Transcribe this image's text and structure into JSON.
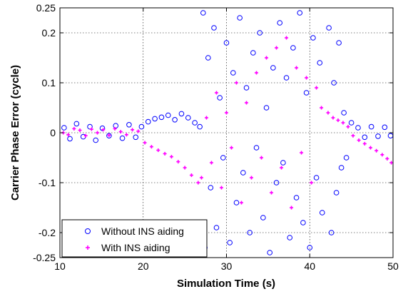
{
  "chart_data": {
    "type": "scatter",
    "title": "",
    "xlabel": "Simulation Time (s)",
    "ylabel": "Carrier Phase Error (cycle)",
    "xlim": [
      10,
      50
    ],
    "ylim": [
      -0.25,
      0.25
    ],
    "xticks": [
      10,
      20,
      30,
      40,
      50
    ],
    "xtick_labels": [
      "10",
      "20",
      "30",
      "40",
      "50"
    ],
    "yticks": [
      -0.25,
      -0.2,
      -0.1,
      0,
      0.1,
      0.2,
      0.25
    ],
    "ytick_labels": [
      "-0.25",
      "-0.2",
      "-0.1",
      "0",
      "0.1",
      "0.2",
      "0.25"
    ],
    "grid": true,
    "legend_position": "bottom-left",
    "series": [
      {
        "name": "Without INS aiding",
        "marker": "circle-open",
        "color": "#0000ff",
        "points": [
          [
            10.5,
            0.01
          ],
          [
            11.2,
            -0.012
          ],
          [
            12.0,
            0.018
          ],
          [
            12.8,
            -0.008
          ],
          [
            13.6,
            0.012
          ],
          [
            14.3,
            -0.015
          ],
          [
            15.1,
            0.009
          ],
          [
            15.9,
            -0.006
          ],
          [
            16.7,
            0.014
          ],
          [
            17.5,
            -0.011
          ],
          [
            18.3,
            0.016
          ],
          [
            19.1,
            -0.009
          ],
          [
            19.8,
            0.012
          ],
          [
            20.6,
            0.022
          ],
          [
            21.4,
            0.028
          ],
          [
            22.2,
            0.031
          ],
          [
            23.0,
            0.035
          ],
          [
            23.8,
            0.026
          ],
          [
            24.6,
            0.038
          ],
          [
            25.4,
            0.03
          ],
          [
            26.2,
            0.02
          ],
          [
            26.8,
            0.012
          ],
          [
            27.2,
            0.24
          ],
          [
            27.4,
            -0.23
          ],
          [
            27.8,
            0.15
          ],
          [
            28.1,
            -0.11
          ],
          [
            28.5,
            0.21
          ],
          [
            28.8,
            -0.19
          ],
          [
            29.2,
            0.07
          ],
          [
            29.6,
            -0.05
          ],
          [
            30.0,
            0.18
          ],
          [
            30.4,
            -0.22
          ],
          [
            30.8,
            0.12
          ],
          [
            31.2,
            -0.14
          ],
          [
            31.6,
            0.23
          ],
          [
            32.0,
            -0.08
          ],
          [
            32.4,
            0.09
          ],
          [
            32.8,
            -0.2
          ],
          [
            33.2,
            0.16
          ],
          [
            33.6,
            -0.03
          ],
          [
            34.0,
            0.2
          ],
          [
            34.4,
            -0.17
          ],
          [
            34.8,
            0.05
          ],
          [
            35.2,
            -0.24
          ],
          [
            35.6,
            0.13
          ],
          [
            36.0,
            -0.1
          ],
          [
            36.4,
            0.22
          ],
          [
            36.8,
            -0.06
          ],
          [
            37.2,
            0.11
          ],
          [
            37.6,
            -0.21
          ],
          [
            38.0,
            0.17
          ],
          [
            38.4,
            -0.13
          ],
          [
            38.8,
            0.24
          ],
          [
            39.2,
            -0.18
          ],
          [
            39.6,
            0.08
          ],
          [
            40.0,
            -0.23
          ],
          [
            40.4,
            0.19
          ],
          [
            40.8,
            -0.09
          ],
          [
            41.2,
            0.14
          ],
          [
            41.5,
            -0.16
          ],
          [
            42.3,
            0.21
          ],
          [
            42.6,
            -0.2
          ],
          [
            42.9,
            0.1
          ],
          [
            43.2,
            -0.12
          ],
          [
            43.5,
            0.18
          ],
          [
            43.8,
            -0.07
          ],
          [
            44.1,
            0.04
          ],
          [
            44.4,
            -0.05
          ],
          [
            45.0,
            0.02
          ],
          [
            45.8,
            0.01
          ],
          [
            46.6,
            -0.009
          ],
          [
            47.4,
            0.012
          ],
          [
            48.2,
            -0.007
          ],
          [
            49.0,
            0.011
          ],
          [
            49.7,
            -0.006
          ]
        ]
      },
      {
        "name": "With INS aiding",
        "marker": "plus",
        "color": "#ff00ff",
        "points": [
          [
            10.4,
            0.0
          ],
          [
            11.0,
            -0.004
          ],
          [
            11.7,
            0.008
          ],
          [
            12.4,
            0.005
          ],
          [
            13.1,
            -0.006
          ],
          [
            13.8,
            0.007
          ],
          [
            14.5,
            0.0
          ],
          [
            15.2,
            0.006
          ],
          [
            15.9,
            -0.005
          ],
          [
            16.6,
            0.008
          ],
          [
            17.3,
            0.002
          ],
          [
            18.0,
            -0.004
          ],
          [
            18.7,
            0.006
          ],
          [
            19.4,
            0.003
          ],
          [
            20.2,
            -0.02
          ],
          [
            21.0,
            -0.028
          ],
          [
            21.8,
            -0.035
          ],
          [
            22.6,
            -0.042
          ],
          [
            23.4,
            -0.048
          ],
          [
            24.2,
            -0.058
          ],
          [
            25.0,
            -0.07
          ],
          [
            25.8,
            -0.085
          ],
          [
            26.6,
            -0.1
          ],
          [
            27.0,
            -0.09
          ],
          [
            27.6,
            0.03
          ],
          [
            28.2,
            -0.06
          ],
          [
            28.8,
            0.08
          ],
          [
            29.4,
            -0.11
          ],
          [
            30.0,
            0.04
          ],
          [
            30.6,
            -0.03
          ],
          [
            31.2,
            0.1
          ],
          [
            31.8,
            -0.14
          ],
          [
            32.4,
            0.06
          ],
          [
            33.0,
            -0.09
          ],
          [
            33.6,
            0.12
          ],
          [
            34.2,
            -0.05
          ],
          [
            34.8,
            0.15
          ],
          [
            35.4,
            -0.12
          ],
          [
            36.0,
            0.17
          ],
          [
            36.6,
            -0.07
          ],
          [
            37.2,
            0.19
          ],
          [
            37.8,
            -0.15
          ],
          [
            38.4,
            0.13
          ],
          [
            39.0,
            -0.04
          ],
          [
            39.6,
            0.11
          ],
          [
            40.2,
            -0.1
          ],
          [
            40.8,
            0.09
          ],
          [
            41.4,
            0.05
          ],
          [
            42.2,
            0.04
          ],
          [
            42.8,
            0.03
          ],
          [
            43.4,
            0.025
          ],
          [
            44.0,
            0.02
          ],
          [
            44.6,
            0.012
          ],
          [
            45.2,
            -0.006
          ],
          [
            45.9,
            -0.015
          ],
          [
            46.6,
            -0.022
          ],
          [
            47.3,
            -0.03
          ],
          [
            48.0,
            -0.036
          ],
          [
            48.7,
            -0.044
          ],
          [
            49.3,
            -0.052
          ],
          [
            49.8,
            -0.06
          ]
        ]
      }
    ]
  }
}
